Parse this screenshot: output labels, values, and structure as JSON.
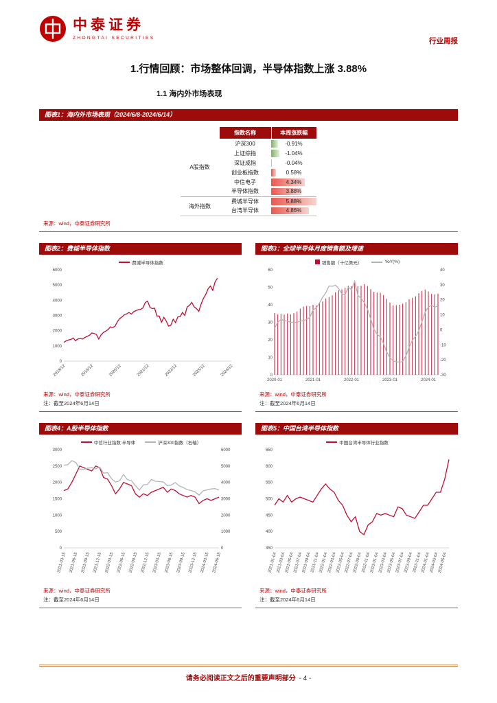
{
  "header": {
    "brand_cn": "中泰证券",
    "brand_en": "ZHONGTAI SECURITIES",
    "doc_type": "行业周报"
  },
  "title": "1.行情回顾：市场整体回调，半导体指数上涨 3.88%",
  "subtitle": "1.1 海内外市场表现",
  "colors": {
    "brand_red": "#c00000",
    "accent_dark": "#9e0b0b",
    "chart_red": "#bf0d32",
    "chart_gray": "#b3b3b3",
    "databar_positive": "#e8584f",
    "databar_negative": "#7fb069",
    "footer_rule": "#c89058"
  },
  "figure1": {
    "caption": "图表1：海内外市场表现（2024/6/8-2024/6/14）",
    "source": "来源：wind，中泰证券研究所",
    "table": {
      "headers": [
        "指数名称",
        "本周涨跌幅"
      ],
      "groups": [
        {
          "name": "A股指数",
          "rows": [
            {
              "index": "沪深300",
              "change": "-0.91%",
              "value": -0.91
            },
            {
              "index": "上证综指",
              "change": "-1.04%",
              "value": -1.04
            },
            {
              "index": "深证成指",
              "change": "-0.04%",
              "value": -0.04
            },
            {
              "index": "创业板指数",
              "change": "0.58%",
              "value": 0.58
            },
            {
              "index": "中信电子",
              "change": "4.34%",
              "value": 4.34
            },
            {
              "index": "半导体指数",
              "change": "3.88%",
              "value": 3.88
            }
          ]
        },
        {
          "name": "海外指数",
          "rows": [
            {
              "index": "费城半导体",
              "change": "5.88%",
              "value": 5.88
            },
            {
              "index": "台湾半导体",
              "change": "4.86%",
              "value": 4.86
            }
          ]
        }
      ]
    }
  },
  "figures": [
    {
      "caption": "图表2：费城半导体指数",
      "source": "来源：wind，中泰证券研究所",
      "note": "注：截至2024年6月14日"
    },
    {
      "caption": "图表3：全球半导体月度销售额及增速",
      "source": "来源：wind，中泰证券研究所",
      "note": "注：截至2024年6月14日"
    },
    {
      "caption": "图表4：A股半导体指数",
      "source": "来源：wind，中泰证券研究所",
      "note": "注：截至2024年6月14日"
    },
    {
      "caption": "图表5：中国台湾半导体指数",
      "source": "来源：wind，中泰证券研究所",
      "note": "注：截至2024年6月14日"
    }
  ],
  "footer": {
    "text": "请务必阅读正文之后的重要声明部分",
    "page": "- 4 -"
  },
  "chart_data": [
    {
      "name": "philadelphia-semiconductor-index",
      "type": "line",
      "title": "费城半导体指数",
      "legend": [
        {
          "label": "费城半导体指数",
          "kind": "line",
          "color": "#bf0d32"
        }
      ],
      "left_axis": {
        "min": 0,
        "max": 6000,
        "ticks": [
          0,
          1000,
          2000,
          3000,
          4000,
          5000,
          6000
        ]
      },
      "x_tick_every": 12,
      "x_tick_rotation": -45,
      "x": [
        "2018/12",
        "2019/01",
        "2019/02",
        "2019/03",
        "2019/04",
        "2019/05",
        "2019/06",
        "2019/07",
        "2019/08",
        "2019/09",
        "2019/10",
        "2019/11",
        "2019/12",
        "2020/01",
        "2020/02",
        "2020/03",
        "2020/04",
        "2020/05",
        "2020/06",
        "2020/07",
        "2020/08",
        "2020/09",
        "2020/10",
        "2020/11",
        "2020/12",
        "2021/01",
        "2021/02",
        "2021/03",
        "2021/04",
        "2021/05",
        "2021/06",
        "2021/07",
        "2021/08",
        "2021/09",
        "2021/10",
        "2021/11",
        "2021/12",
        "2022/01",
        "2022/02",
        "2022/03",
        "2022/04",
        "2022/05",
        "2022/06",
        "2022/07",
        "2022/08",
        "2022/09",
        "2022/10",
        "2022/11",
        "2022/12",
        "2023/01",
        "2023/02",
        "2023/03",
        "2023/04",
        "2023/05",
        "2023/06",
        "2023/07",
        "2023/08",
        "2023/09",
        "2023/10",
        "2023/11",
        "2023/12",
        "2024/01",
        "2024/02",
        "2024/03",
        "2024/04",
        "2024/05",
        "2024/06",
        "2024/07",
        "2024/08",
        "2024/09",
        "2024/10",
        "2024/11",
        "2024/12"
      ],
      "series": [
        {
          "name": "费城半导体指数",
          "color": "#bf0d32",
          "axis": "left",
          "kind": "line",
          "values": [
            1230,
            1330,
            1390,
            1420,
            1520,
            1350,
            1450,
            1490,
            1450,
            1550,
            1620,
            1700,
            1850,
            1820,
            1750,
            1450,
            1720,
            1880,
            1970,
            2070,
            2250,
            2200,
            2300,
            2580,
            2800,
            2900,
            3050,
            3100,
            3200,
            3090,
            3250,
            3320,
            3380,
            3400,
            3500,
            3850,
            3940,
            3540,
            3450,
            3480,
            2970,
            2960,
            2560,
            2880,
            2640,
            2300,
            2360,
            2750,
            2530,
            2910,
            2920,
            3200,
            3000,
            3550,
            3670,
            3860,
            3570,
            3450,
            3270,
            3740,
            4120,
            4380,
            4750,
            4930,
            4650,
            5200,
            5450,
            null,
            null,
            null,
            null,
            null,
            null
          ]
        }
      ]
    },
    {
      "name": "global-semiconductor-monthly-sales",
      "type": "bar+line",
      "title": "全球半导体月度销售额及增速",
      "legend": [
        {
          "label": "销售额（十亿美元）",
          "kind": "bar",
          "color": "#bf0d32"
        },
        {
          "label": "YoY(%)",
          "kind": "line",
          "color": "#b3b3b3"
        }
      ],
      "left_axis": {
        "min": 0,
        "max": 60,
        "ticks": [
          0,
          10,
          20,
          30,
          40,
          50,
          60
        ]
      },
      "right_axis": {
        "min": -30,
        "max": 40,
        "ticks": [
          -30,
          -20,
          -10,
          0,
          10,
          20,
          30,
          40
        ]
      },
      "x_tick_every": 12,
      "x_tick_rotation": 0,
      "x": [
        "2020-01",
        "2020-02",
        "2020-03",
        "2020-04",
        "2020-05",
        "2020-06",
        "2020-07",
        "2020-08",
        "2020-09",
        "2020-10",
        "2020-11",
        "2020-12",
        "2021-01",
        "2021-02",
        "2021-03",
        "2021-04",
        "2021-05",
        "2021-06",
        "2021-07",
        "2021-08",
        "2021-09",
        "2021-10",
        "2021-11",
        "2021-12",
        "2022-01",
        "2022-02",
        "2022-03",
        "2022-04",
        "2022-05",
        "2022-06",
        "2022-07",
        "2022-08",
        "2022-09",
        "2022-10",
        "2022-11",
        "2022-12",
        "2023-01",
        "2023-02",
        "2023-03",
        "2023-04",
        "2023-05",
        "2023-06",
        "2023-07",
        "2023-08",
        "2023-09",
        "2023-10",
        "2023-11",
        "2023-12",
        "2024-01",
        "2024-02",
        "2024-03",
        "2024-04"
      ],
      "series": [
        {
          "name": "销售额（十亿美元）",
          "color": "#bf0d32",
          "axis": "left",
          "kind": "bar",
          "values": [
            35.3,
            34.5,
            34.8,
            34.4,
            35.0,
            34.5,
            35.2,
            36.2,
            37.8,
            39.0,
            39.4,
            39.2,
            40.0,
            39.6,
            41.0,
            41.9,
            43.6,
            44.5,
            45.4,
            47.2,
            48.3,
            48.8,
            49.7,
            50.9,
            50.7,
            52.5,
            50.6,
            50.9,
            51.8,
            50.8,
            49.0,
            47.4,
            47.0,
            46.9,
            45.5,
            43.4,
            41.3,
            39.7,
            39.8,
            40.0,
            40.7,
            41.5,
            43.2,
            44.0,
            44.9,
            46.6,
            48.0,
            48.7,
            47.6,
            46.2,
            45.9,
            46.4
          ]
        },
        {
          "name": "YoY(%)",
          "color": "#b3b3b3",
          "axis": "right",
          "kind": "line",
          "values": [
            1.0,
            5.0,
            6.9,
            6.1,
            5.8,
            5.1,
            4.9,
            4.9,
            5.8,
            6.0,
            7.0,
            8.3,
            13.2,
            14.7,
            17.8,
            21.7,
            24.7,
            29.2,
            29.0,
            29.7,
            27.6,
            24.0,
            23.5,
            28.3,
            26.8,
            32.4,
            23.0,
            21.1,
            18.0,
            13.9,
            7.3,
            0.5,
            -3.0,
            -4.6,
            -9.2,
            -14.7,
            -18.5,
            -20.7,
            -21.3,
            -21.6,
            -21.1,
            -17.3,
            -11.8,
            -6.8,
            -4.5,
            -0.7,
            5.3,
            11.8,
            15.2,
            16.3,
            15.2,
            15.8
          ]
        }
      ]
    },
    {
      "name": "a-share-semiconductor-index",
      "type": "line",
      "title": "A股半导体指数",
      "legend": [
        {
          "label": "中信行业指数:半导体",
          "kind": "line",
          "color": "#bf0d32"
        },
        {
          "label": "沪深300指数（右轴）",
          "kind": "line",
          "color": "#b3b3b3"
        }
      ],
      "left_axis": {
        "min": 0,
        "max": 3000,
        "ticks": [
          0,
          500,
          1000,
          1500,
          2000,
          2500,
          3000
        ]
      },
      "right_axis": {
        "min": 0,
        "max": 6000,
        "ticks": [
          0,
          1000,
          2000,
          3000,
          4000,
          5000,
          6000
        ]
      },
      "x_tick_every": 3,
      "x_tick_rotation": -75,
      "x": [
        "2021-03-15",
        "2021-04-15",
        "2021-05-15",
        "2021-06-15",
        "2021-07-15",
        "2021-08-15",
        "2021-09-15",
        "2021-10-15",
        "2021-11-15",
        "2021-12-15",
        "2022-01-15",
        "2022-02-15",
        "2022-03-15",
        "2022-04-15",
        "2022-05-15",
        "2022-06-15",
        "2022-07-15",
        "2022-08-15",
        "2022-09-15",
        "2022-10-15",
        "2022-11-15",
        "2022-12-15",
        "2023-01-15",
        "2023-02-15",
        "2023-03-15",
        "2023-04-15",
        "2023-05-15",
        "2023-06-15",
        "2023-07-15",
        "2023-08-15",
        "2023-09-15",
        "2023-10-15",
        "2023-11-15",
        "2023-12-15",
        "2024-01-15",
        "2024-02-15",
        "2024-03-15",
        "2024-04-15",
        "2024-05-15",
        "2024-06-15"
      ],
      "series": [
        {
          "name": "中信行业指数:半导体",
          "color": "#bf0d32",
          "axis": "left",
          "kind": "line",
          "values": [
            1750,
            1800,
            2000,
            2250,
            2500,
            2450,
            2400,
            2350,
            2500,
            2450,
            2150,
            2100,
            1900,
            1650,
            1800,
            2000,
            1950,
            1900,
            1650,
            1550,
            1650,
            1600,
            1700,
            1750,
            1800,
            1850,
            1700,
            1800,
            1750,
            1650,
            1600,
            1550,
            1600,
            1550,
            1350,
            1450,
            1500,
            1450,
            1500,
            1550
          ]
        },
        {
          "name": "沪深300指数（右轴）",
          "color": "#b3b3b3",
          "axis": "right",
          "kind": "line",
          "values": [
            5050,
            5080,
            5330,
            5220,
            4810,
            4800,
            4870,
            4900,
            4830,
            4940,
            4560,
            4590,
            4220,
            4020,
            4090,
            4480,
            4170,
            4100,
            3800,
            3540,
            3850,
            3870,
            4180,
            4070,
            4050,
            4030,
            3800,
            3840,
            3990,
            3790,
            3690,
            3560,
            3500,
            3420,
            3220,
            3480,
            3540,
            3600,
            3620,
            3540
          ]
        }
      ]
    },
    {
      "name": "taiwan-semiconductor-index",
      "type": "line",
      "title": "中国台湾半导体指数",
      "legend": [
        {
          "label": "中国台湾半导体行业指数",
          "kind": "line",
          "color": "#bf0d32"
        }
      ],
      "left_axis": {
        "min": 350,
        "max": 650,
        "ticks": [
          350,
          400,
          450,
          500,
          550,
          600,
          650
        ]
      },
      "x_tick_every": 2,
      "x_tick_rotation": -75,
      "x": [
        "2021-01-04",
        "2021-02-04",
        "2021-03-04",
        "2021-04-04",
        "2021-05-04",
        "2021-06-04",
        "2021-07-04",
        "2021-08-04",
        "2021-09-04",
        "2021-10-04",
        "2021-11-04",
        "2021-12-04",
        "2022-01-04",
        "2022-02-04",
        "2022-03-04",
        "2022-04-04",
        "2022-05-04",
        "2022-06-04",
        "2022-07-04",
        "2022-08-04",
        "2022-09-04",
        "2022-10-04",
        "2022-11-04",
        "2022-12-04",
        "2023-01-04",
        "2023-02-04",
        "2023-03-04",
        "2023-04-04",
        "2023-05-04",
        "2023-06-04",
        "2023-07-04",
        "2023-08-04",
        "2023-09-04",
        "2023-10-04",
        "2023-11-04",
        "2023-12-04",
        "2024-01-04",
        "2024-02-04",
        "2024-03-04",
        "2024-04-04",
        "2024-05-04",
        "2024-06-04"
      ],
      "series": [
        {
          "name": "中国台湾半导体行业指数",
          "color": "#bf0d32",
          "axis": "left",
          "kind": "line",
          "values": [
            480,
            500,
            490,
            510,
            490,
            500,
            505,
            500,
            495,
            490,
            510,
            530,
            545,
            530,
            520,
            495,
            480,
            450,
            430,
            445,
            400,
            390,
            420,
            430,
            455,
            450,
            455,
            450,
            445,
            475,
            470,
            450,
            445,
            440,
            460,
            480,
            480,
            500,
            520,
            520,
            560,
            620
          ]
        }
      ]
    }
  ]
}
